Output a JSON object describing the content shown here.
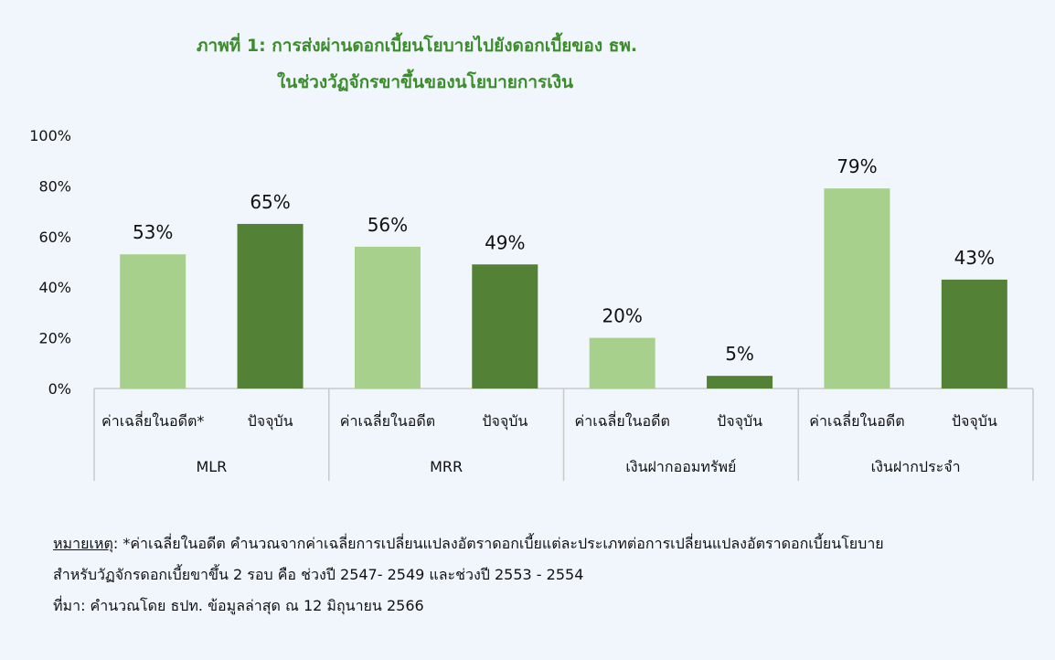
{
  "title": {
    "line1": "ภาพที่ 1: การส่งผ่านดอกเบี้ยนโยบายไปยังดอกเบี้ยของ ธพ.",
    "line2": "ในช่วงวัฏจักรขาขึ้นของนโยบายการเงิน"
  },
  "colors": {
    "past": "#a8d08d",
    "current": "#538135",
    "title": "#3b8c2a"
  },
  "chart_data": {
    "type": "bar",
    "ylim": [
      0,
      100
    ],
    "y_ticks": [
      "0%",
      "20%",
      "40%",
      "60%",
      "80%",
      "100%"
    ],
    "groups": [
      {
        "name": "MLR",
        "bars": [
          {
            "label": "ค่าเฉลี่ยในอดีต*",
            "value": 53,
            "data_label": "53%",
            "kind": "past"
          },
          {
            "label": "ปัจจุบัน",
            "value": 65,
            "data_label": "65%",
            "kind": "current"
          }
        ]
      },
      {
        "name": "MRR",
        "bars": [
          {
            "label": "ค่าเฉลี่ยในอดีต",
            "value": 56,
            "data_label": "56%",
            "kind": "past"
          },
          {
            "label": "ปัจจุบัน",
            "value": 49,
            "data_label": "49%",
            "kind": "current"
          }
        ]
      },
      {
        "name": "เงินฝากออมทรัพย์",
        "bars": [
          {
            "label": "ค่าเฉลี่ยในอดีต",
            "value": 20,
            "data_label": "20%",
            "kind": "past"
          },
          {
            "label": "ปัจจุบัน",
            "value": 5,
            "data_label": "5%",
            "kind": "current"
          }
        ]
      },
      {
        "name": "เงินฝากประจำ",
        "bars": [
          {
            "label": "ค่าเฉลี่ยในอดีต",
            "value": 79,
            "data_label": "79%",
            "kind": "past"
          },
          {
            "label": "ปัจจุบัน",
            "value": 43,
            "data_label": "43%",
            "kind": "current"
          }
        ]
      }
    ],
    "grid": false
  },
  "notes": {
    "remark_label": "หมายเหตุ",
    "remark_text": ": *ค่าเฉลี่ยในอดีต คำนวณจากค่าเฉลี่ยการเปลี่ยนแปลงอัตราดอกเบี้ยแต่ละประเภทต่อการเปลี่ยนแปลงอัตราดอกเบี้ยนโยบาย",
    "remark_line2": "สำหรับวัฏจักรดอกเบี้ยขาขึ้น 2 รอบ คือ ช่วงปี 2547- 2549 และช่วงปี 2553 - 2554",
    "source": "ที่มา: คำนวณโดย ธปท. ข้อมูลล่าสุด ณ 12 มิถุนายน 2566"
  }
}
